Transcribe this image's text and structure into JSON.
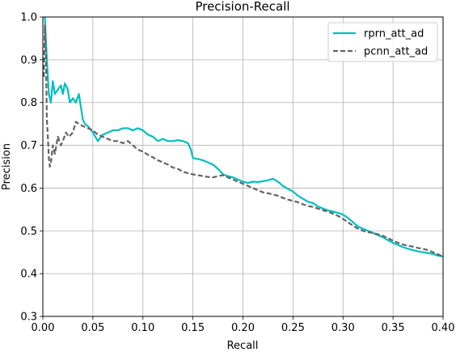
{
  "chart_data": {
    "type": "line",
    "title": "Precision-Recall",
    "xlabel": "Recall",
    "ylabel": "Precision",
    "xlim": [
      0.0,
      0.4
    ],
    "ylim": [
      0.3,
      1.0
    ],
    "xticks": [
      "0.00",
      "0.05",
      "0.10",
      "0.15",
      "0.20",
      "0.25",
      "0.30",
      "0.35",
      "0.40"
    ],
    "yticks": [
      "0.3",
      "0.4",
      "0.5",
      "0.6",
      "0.7",
      "0.8",
      "0.9",
      "1.0"
    ],
    "grid": true,
    "legend_position": "top-right",
    "series": [
      {
        "name": "rprn_att_ad",
        "color": "#00bfbf",
        "style": "solid",
        "points": [
          [
            0.002,
            1.0
          ],
          [
            0.003,
            0.95
          ],
          [
            0.004,
            0.9
          ],
          [
            0.005,
            0.86
          ],
          [
            0.006,
            0.82
          ],
          [
            0.008,
            0.8
          ],
          [
            0.01,
            0.85
          ],
          [
            0.012,
            0.82
          ],
          [
            0.015,
            0.83
          ],
          [
            0.018,
            0.84
          ],
          [
            0.02,
            0.82
          ],
          [
            0.022,
            0.845
          ],
          [
            0.025,
            0.83
          ],
          [
            0.027,
            0.8
          ],
          [
            0.03,
            0.81
          ],
          [
            0.033,
            0.8
          ],
          [
            0.036,
            0.82
          ],
          [
            0.038,
            0.79
          ],
          [
            0.04,
            0.76
          ],
          [
            0.042,
            0.75
          ],
          [
            0.045,
            0.745
          ],
          [
            0.05,
            0.73
          ],
          [
            0.055,
            0.71
          ],
          [
            0.06,
            0.725
          ],
          [
            0.065,
            0.73
          ],
          [
            0.07,
            0.735
          ],
          [
            0.075,
            0.735
          ],
          [
            0.08,
            0.74
          ],
          [
            0.085,
            0.74
          ],
          [
            0.09,
            0.735
          ],
          [
            0.095,
            0.74
          ],
          [
            0.1,
            0.735
          ],
          [
            0.105,
            0.725
          ],
          [
            0.11,
            0.72
          ],
          [
            0.115,
            0.71
          ],
          [
            0.12,
            0.715
          ],
          [
            0.125,
            0.71
          ],
          [
            0.13,
            0.71
          ],
          [
            0.135,
            0.712
          ],
          [
            0.14,
            0.71
          ],
          [
            0.145,
            0.705
          ],
          [
            0.148,
            0.69
          ],
          [
            0.15,
            0.67
          ],
          [
            0.155,
            0.668
          ],
          [
            0.16,
            0.665
          ],
          [
            0.165,
            0.66
          ],
          [
            0.17,
            0.655
          ],
          [
            0.175,
            0.645
          ],
          [
            0.18,
            0.632
          ],
          [
            0.185,
            0.628
          ],
          [
            0.19,
            0.625
          ],
          [
            0.195,
            0.62
          ],
          [
            0.2,
            0.615
          ],
          [
            0.205,
            0.612
          ],
          [
            0.21,
            0.615
          ],
          [
            0.215,
            0.614
          ],
          [
            0.22,
            0.616
          ],
          [
            0.225,
            0.618
          ],
          [
            0.23,
            0.622
          ],
          [
            0.235,
            0.615
          ],
          [
            0.24,
            0.605
          ],
          [
            0.245,
            0.598
          ],
          [
            0.25,
            0.592
          ],
          [
            0.255,
            0.582
          ],
          [
            0.26,
            0.575
          ],
          [
            0.265,
            0.568
          ],
          [
            0.27,
            0.565
          ],
          [
            0.275,
            0.557
          ],
          [
            0.28,
            0.552
          ],
          [
            0.285,
            0.548
          ],
          [
            0.29,
            0.545
          ],
          [
            0.295,
            0.542
          ],
          [
            0.3,
            0.538
          ],
          [
            0.305,
            0.53
          ],
          [
            0.31,
            0.52
          ],
          [
            0.315,
            0.51
          ],
          [
            0.32,
            0.505
          ],
          [
            0.325,
            0.5
          ],
          [
            0.33,
            0.495
          ],
          [
            0.335,
            0.49
          ],
          [
            0.34,
            0.485
          ],
          [
            0.345,
            0.478
          ],
          [
            0.35,
            0.472
          ],
          [
            0.355,
            0.467
          ],
          [
            0.36,
            0.462
          ],
          [
            0.365,
            0.458
          ],
          [
            0.37,
            0.455
          ],
          [
            0.375,
            0.452
          ],
          [
            0.38,
            0.45
          ],
          [
            0.385,
            0.448
          ],
          [
            0.39,
            0.446
          ],
          [
            0.395,
            0.442
          ],
          [
            0.4,
            0.44
          ]
        ]
      },
      {
        "name": "pcnn_att_ad",
        "color": "#636363",
        "style": "dashed",
        "points": [
          [
            0.001,
            0.86
          ],
          [
            0.002,
            0.98
          ],
          [
            0.003,
            0.92
          ],
          [
            0.004,
            0.76
          ],
          [
            0.005,
            0.72
          ],
          [
            0.006,
            0.67
          ],
          [
            0.007,
            0.65
          ],
          [
            0.008,
            0.66
          ],
          [
            0.01,
            0.7
          ],
          [
            0.012,
            0.68
          ],
          [
            0.015,
            0.72
          ],
          [
            0.018,
            0.7
          ],
          [
            0.02,
            0.71
          ],
          [
            0.023,
            0.73
          ],
          [
            0.026,
            0.72
          ],
          [
            0.03,
            0.73
          ],
          [
            0.033,
            0.755
          ],
          [
            0.036,
            0.75
          ],
          [
            0.04,
            0.745
          ],
          [
            0.045,
            0.74
          ],
          [
            0.05,
            0.735
          ],
          [
            0.055,
            0.725
          ],
          [
            0.06,
            0.72
          ],
          [
            0.065,
            0.715
          ],
          [
            0.07,
            0.71
          ],
          [
            0.075,
            0.71
          ],
          [
            0.08,
            0.705
          ],
          [
            0.085,
            0.71
          ],
          [
            0.09,
            0.7
          ],
          [
            0.095,
            0.69
          ],
          [
            0.1,
            0.685
          ],
          [
            0.105,
            0.678
          ],
          [
            0.11,
            0.672
          ],
          [
            0.115,
            0.665
          ],
          [
            0.12,
            0.66
          ],
          [
            0.125,
            0.655
          ],
          [
            0.13,
            0.648
          ],
          [
            0.135,
            0.645
          ],
          [
            0.14,
            0.638
          ],
          [
            0.145,
            0.635
          ],
          [
            0.15,
            0.632
          ],
          [
            0.155,
            0.63
          ],
          [
            0.16,
            0.628
          ],
          [
            0.165,
            0.626
          ],
          [
            0.17,
            0.625
          ],
          [
            0.175,
            0.628
          ],
          [
            0.18,
            0.63
          ],
          [
            0.185,
            0.625
          ],
          [
            0.19,
            0.62
          ],
          [
            0.195,
            0.615
          ],
          [
            0.2,
            0.61
          ],
          [
            0.205,
            0.605
          ],
          [
            0.21,
            0.6
          ],
          [
            0.215,
            0.595
          ],
          [
            0.22,
            0.59
          ],
          [
            0.225,
            0.588
          ],
          [
            0.23,
            0.585
          ],
          [
            0.235,
            0.582
          ],
          [
            0.24,
            0.577
          ],
          [
            0.245,
            0.573
          ],
          [
            0.25,
            0.57
          ],
          [
            0.255,
            0.567
          ],
          [
            0.26,
            0.562
          ],
          [
            0.265,
            0.558
          ],
          [
            0.27,
            0.556
          ],
          [
            0.275,
            0.552
          ],
          [
            0.28,
            0.548
          ],
          [
            0.285,
            0.545
          ],
          [
            0.29,
            0.54
          ],
          [
            0.295,
            0.535
          ],
          [
            0.3,
            0.528
          ],
          [
            0.305,
            0.52
          ],
          [
            0.31,
            0.512
          ],
          [
            0.315,
            0.505
          ],
          [
            0.32,
            0.5
          ],
          [
            0.325,
            0.497
          ],
          [
            0.33,
            0.495
          ],
          [
            0.335,
            0.492
          ],
          [
            0.34,
            0.488
          ],
          [
            0.345,
            0.483
          ],
          [
            0.35,
            0.477
          ],
          [
            0.355,
            0.472
          ],
          [
            0.36,
            0.468
          ],
          [
            0.365,
            0.465
          ],
          [
            0.37,
            0.463
          ],
          [
            0.375,
            0.46
          ],
          [
            0.38,
            0.458
          ],
          [
            0.385,
            0.455
          ],
          [
            0.39,
            0.45
          ],
          [
            0.395,
            0.445
          ],
          [
            0.4,
            0.44
          ]
        ]
      }
    ]
  }
}
